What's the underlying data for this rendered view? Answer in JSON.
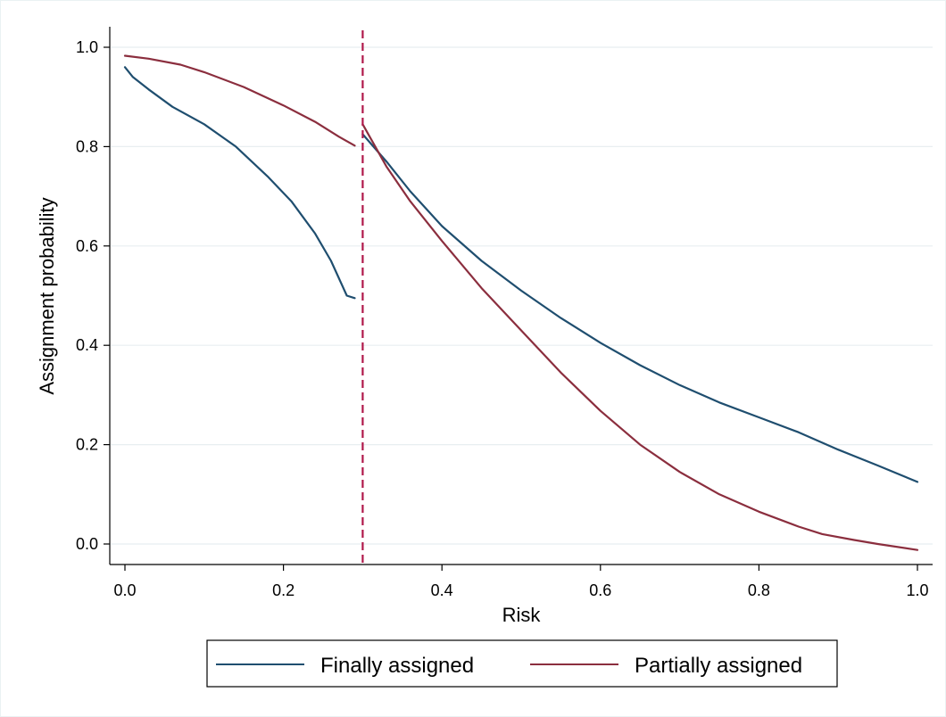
{
  "chart_data": {
    "type": "line",
    "xlabel": "Risk",
    "ylabel": "Assignment probability",
    "xlim": [
      0.0,
      1.0
    ],
    "ylim": [
      0.0,
      1.0
    ],
    "x_ticks": [
      "0.0",
      "0.2",
      "0.4",
      "0.6",
      "0.8",
      "1.0"
    ],
    "y_ticks": [
      "0.0",
      "0.2",
      "0.4",
      "0.6",
      "0.8",
      "1.0"
    ],
    "grid": true,
    "legend_position": "bottom",
    "cutoff": 0.3,
    "cutoff_color": "#b0184a",
    "series": [
      {
        "name": "Finally assigned",
        "color": "#1f4e6f",
        "segments": [
          [
            [
              0.0,
              0.96
            ],
            [
              0.01,
              0.94
            ],
            [
              0.03,
              0.915
            ],
            [
              0.06,
              0.88
            ],
            [
              0.1,
              0.845
            ],
            [
              0.14,
              0.8
            ],
            [
              0.18,
              0.74
            ],
            [
              0.21,
              0.69
            ],
            [
              0.24,
              0.625
            ],
            [
              0.26,
              0.57
            ],
            [
              0.28,
              0.5
            ],
            [
              0.29,
              0.495
            ]
          ],
          [
            [
              0.3,
              0.825
            ],
            [
              0.33,
              0.77
            ],
            [
              0.36,
              0.71
            ],
            [
              0.4,
              0.64
            ],
            [
              0.45,
              0.57
            ],
            [
              0.5,
              0.51
            ],
            [
              0.55,
              0.455
            ],
            [
              0.6,
              0.405
            ],
            [
              0.65,
              0.36
            ],
            [
              0.7,
              0.32
            ],
            [
              0.75,
              0.285
            ],
            [
              0.8,
              0.255
            ],
            [
              0.85,
              0.225
            ],
            [
              0.9,
              0.19
            ],
            [
              0.95,
              0.158
            ],
            [
              1.0,
              0.125
            ]
          ]
        ]
      },
      {
        "name": "Partially assigned",
        "color": "#8b2e3e",
        "segments": [
          [
            [
              0.0,
              0.983
            ],
            [
              0.03,
              0.977
            ],
            [
              0.07,
              0.965
            ],
            [
              0.1,
              0.95
            ],
            [
              0.15,
              0.92
            ],
            [
              0.2,
              0.883
            ],
            [
              0.24,
              0.85
            ],
            [
              0.27,
              0.82
            ],
            [
              0.29,
              0.802
            ]
          ],
          [
            [
              0.3,
              0.845
            ],
            [
              0.33,
              0.76
            ],
            [
              0.36,
              0.69
            ],
            [
              0.4,
              0.61
            ],
            [
              0.45,
              0.515
            ],
            [
              0.5,
              0.43
            ],
            [
              0.55,
              0.345
            ],
            [
              0.6,
              0.268
            ],
            [
              0.65,
              0.2
            ],
            [
              0.7,
              0.145
            ],
            [
              0.75,
              0.1
            ],
            [
              0.8,
              0.065
            ],
            [
              0.85,
              0.035
            ],
            [
              0.88,
              0.02
            ],
            [
              0.92,
              0.008
            ],
            [
              0.95,
              0.0
            ],
            [
              1.0,
              -0.012
            ]
          ]
        ]
      }
    ]
  }
}
